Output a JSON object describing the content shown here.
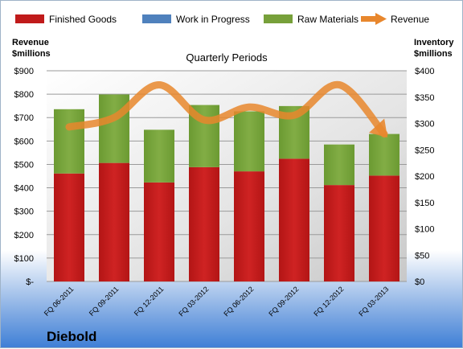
{
  "chart_data": {
    "type": "bar",
    "title": "Quarterly Periods",
    "categories": [
      "FQ 06-2011",
      "FQ 09-2011",
      "FQ 12-2011",
      "FQ 03-2012",
      "FQ 06-2012",
      "FQ 09-2012",
      "FQ 12-2012",
      "FQ 03-2013"
    ],
    "series": [
      {
        "name": "Finished Goods",
        "axis": "right",
        "values": [
          205,
          225,
          188,
          217,
          209,
          233,
          183,
          201
        ],
        "color": "#c01a1a"
      },
      {
        "name": "Work in Progress",
        "axis": "right",
        "values": [
          0,
          0,
          0,
          0,
          0,
          0,
          0,
          0
        ],
        "color": "#4f81bd"
      },
      {
        "name": "Raw Materials",
        "axis": "right",
        "values": [
          122,
          130,
          100,
          118,
          114,
          100,
          77,
          79
        ],
        "color": "#77a03a"
      },
      {
        "name": "Revenue",
        "axis": "left",
        "type": "line",
        "values": [
          660,
          700,
          840,
          690,
          745,
          710,
          840,
          630
        ],
        "color": "#e8872d"
      }
    ],
    "ylabel_left": "Revenue\n$millions",
    "ylabel_right": "Inventory\n$millions",
    "ylim_left": [
      0,
      900
    ],
    "ylim_right": [
      0,
      400
    ],
    "yticks_left": [
      "$-",
      "$100",
      "$200",
      "$300",
      "$400",
      "$500",
      "$600",
      "$700",
      "$800",
      "$900"
    ],
    "yticks_right": [
      "$0",
      "$50",
      "$100",
      "$150",
      "$200",
      "$250",
      "$300",
      "$350",
      "$400"
    ],
    "grid": true,
    "legend_position": "top",
    "company": "Diebold"
  }
}
